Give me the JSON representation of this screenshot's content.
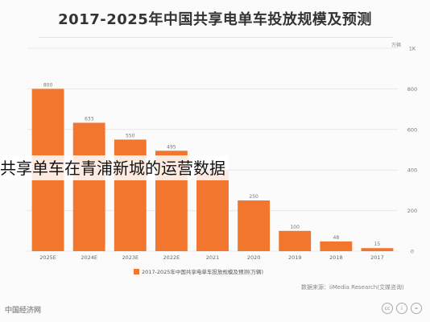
{
  "chart_data": {
    "type": "bar",
    "title": "2017-2025年中国共享电单车投放规模及预测",
    "ylabel": "万辆",
    "categories": [
      "2025E",
      "2024E",
      "2023E",
      "2022E",
      "2021",
      "2020",
      "2019",
      "2018",
      "2017"
    ],
    "values": [
      800,
      633,
      550,
      495,
      400,
      250,
      100,
      48,
      15
    ],
    "ylim": [
      0,
      1000
    ],
    "yticks": [
      "0",
      "200",
      "400",
      "600",
      "800",
      "1K"
    ],
    "legend": "2017-2025年中国共享电单车投放规模及预测(万辆)",
    "legend_position": "bottom",
    "bar_color": "#f2762e",
    "grid": true
  },
  "overlay_text": "共享单车在青浦新城的运营数据",
  "source_text": "数据来源：iiMedia Research(艾媒咨询)",
  "footer_left_text": "中国经济网",
  "footer_icons": [
    "cc-icon",
    "by-icon",
    "equals-icon"
  ]
}
